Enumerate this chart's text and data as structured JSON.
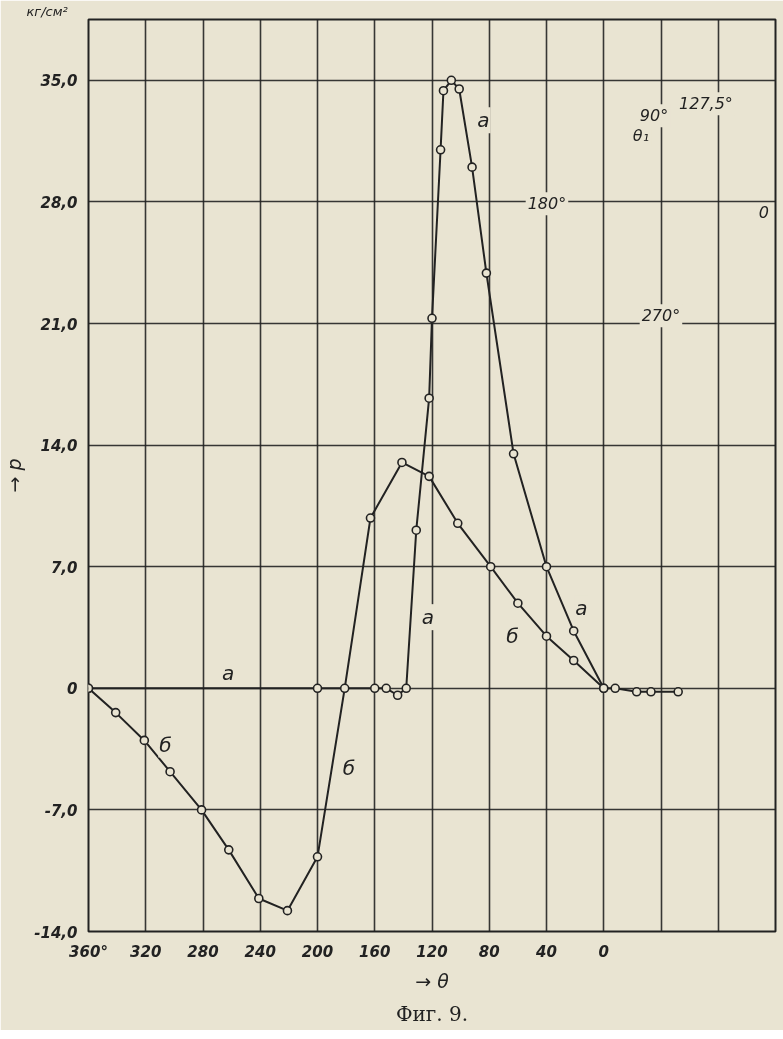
{
  "chart_data": {
    "type": "line",
    "title": "Фиг. 9.",
    "xlabel": "→ θ",
    "ylabel": "→ p",
    "annotations": [
      "кг/см²",
      "90°",
      "127,5°",
      "θ₁",
      "180°",
      "270°",
      "0"
    ],
    "xlim": [
      360,
      -120
    ],
    "xticks": [
      {
        "value": 360,
        "label": "360°"
      },
      320,
      280,
      240,
      200,
      160,
      120,
      80,
      40,
      0,
      {
        "value": -40,
        "label": null
      },
      {
        "value": -80,
        "label": null
      }
    ],
    "ylim": [
      -14,
      38.5
    ],
    "yticks": [
      {
        "value": -14,
        "label": "-14,0"
      },
      {
        "value": -7,
        "label": "-7,0"
      },
      0,
      {
        "value": 7,
        "label": "7,0"
      },
      {
        "value": 14,
        "label": "14,0"
      },
      {
        "value": 21,
        "label": "21,0"
      },
      {
        "value": 28,
        "label": "28,0"
      },
      {
        "value": 35,
        "label": "35,0"
      }
    ],
    "grid": true,
    "marker": "circle",
    "line_style": "solid",
    "series": [
      {
        "name": "а",
        "color": "#222222",
        "x": [
          360,
          200,
          160,
          152,
          144,
          138,
          131,
          122,
          120,
          114,
          112,
          106.5,
          101,
          92,
          82,
          63,
          40,
          21,
          0,
          -8,
          -23,
          -33,
          -52
        ],
        "values": [
          0,
          0,
          0,
          0,
          -0.4,
          0,
          9.1,
          16.7,
          21.3,
          31.0,
          34.4,
          35.0,
          34.5,
          30.0,
          23.9,
          13.5,
          7.0,
          3.3,
          0,
          0,
          -0.2,
          -0.2,
          -0.2
        ]
      },
      {
        "name": "б",
        "color": "#222222",
        "x": [
          360,
          341,
          321,
          303,
          281,
          262,
          241,
          221,
          200,
          181,
          163,
          141,
          122,
          102,
          79,
          60,
          40,
          21,
          0
        ],
        "values": [
          0,
          -1.4,
          -3.0,
          -4.8,
          -7.0,
          -9.3,
          -12.1,
          -12.8,
          -9.7,
          0,
          9.8,
          13.0,
          12.2,
          9.5,
          7.0,
          4.9,
          3.0,
          1.6,
          0
        ]
      }
    ]
  }
}
